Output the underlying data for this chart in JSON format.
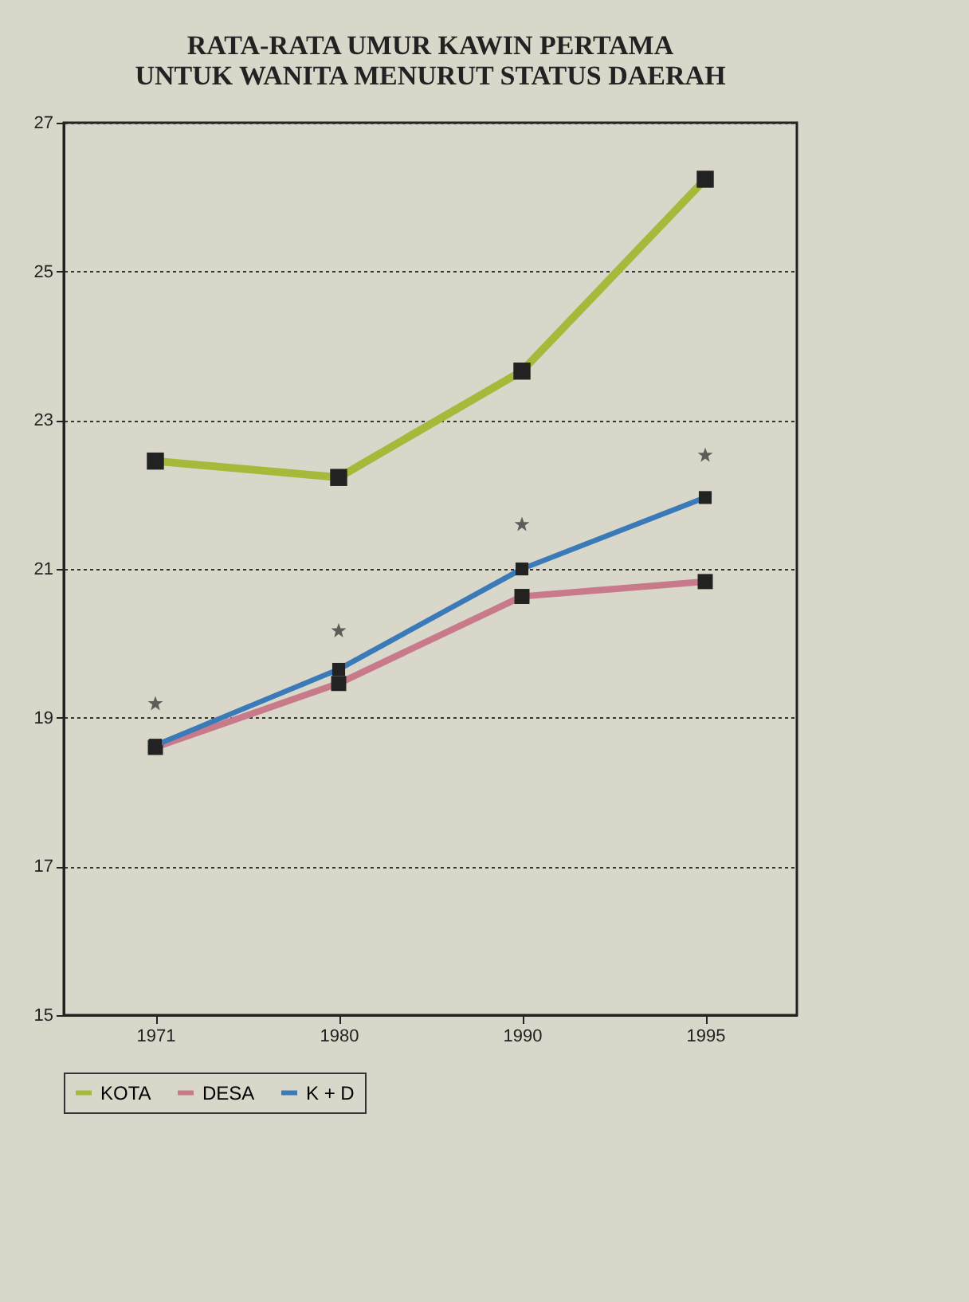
{
  "chart_data": {
    "type": "line",
    "title": [
      "RATA-RATA UMUR KAWIN PERTAMA",
      "UNTUK WANITA MENURUT STATUS DAERAH"
    ],
    "categories": [
      "1971",
      "1980",
      "1990",
      "1995"
    ],
    "series": [
      {
        "name": "KOTA",
        "color": "#a8b83a",
        "values": [
          22.45,
          22.23,
          23.66,
          26.24
        ]
      },
      {
        "name": "DESA",
        "color": "#c87a8a",
        "values": [
          18.6,
          19.46,
          20.63,
          20.83
        ]
      },
      {
        "name": "K + D",
        "color": "#3a7ab8",
        "values": [
          18.63,
          19.65,
          21.0,
          21.96
        ]
      },
      {
        "type": "scatter",
        "marker": "star",
        "color": "#2a2a2a",
        "values": [
          19.19,
          20.17,
          21.6,
          22.53
        ]
      }
    ],
    "ylim": [
      15,
      27
    ],
    "yticks": [
      15,
      17,
      19,
      21,
      23,
      25,
      27
    ],
    "grid": "y",
    "legend": "bottom",
    "marker": "square",
    "line_style": "solid"
  }
}
